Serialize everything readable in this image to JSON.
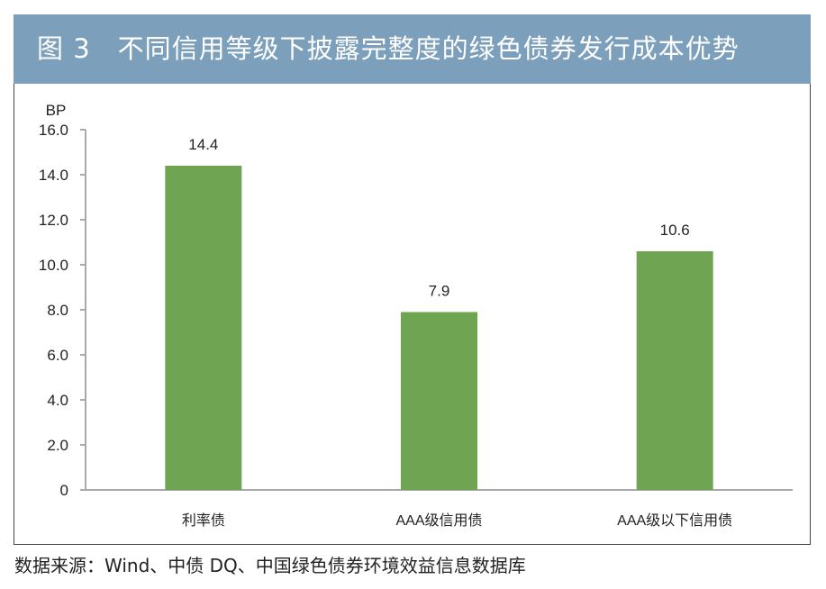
{
  "title": {
    "figure": "图 3",
    "text": "不同信用等级下披露完整度的绿色债券发行成本优势"
  },
  "chart_data": {
    "type": "bar",
    "title": "不同信用等级下披露完整度的绿色债券发行成本优势",
    "categories": [
      "利率债",
      "AAA级信用债",
      "AAA级以下信用债"
    ],
    "values": [
      14.4,
      7.9,
      10.6
    ],
    "value_labels": [
      "14.4",
      "7.9",
      "10.6"
    ],
    "ylabel": "BP",
    "xlabel": "",
    "ylim": [
      0,
      16
    ],
    "yticks": [
      "0",
      "2.0",
      "4.0",
      "6.0",
      "8.0",
      "10.0",
      "12.0",
      "14.0",
      "16.0"
    ],
    "bar_color": "#6fa552",
    "grid": false
  },
  "source": "数据来源：Wind、中债 DQ、中国绿色债券环境效益信息数据库"
}
